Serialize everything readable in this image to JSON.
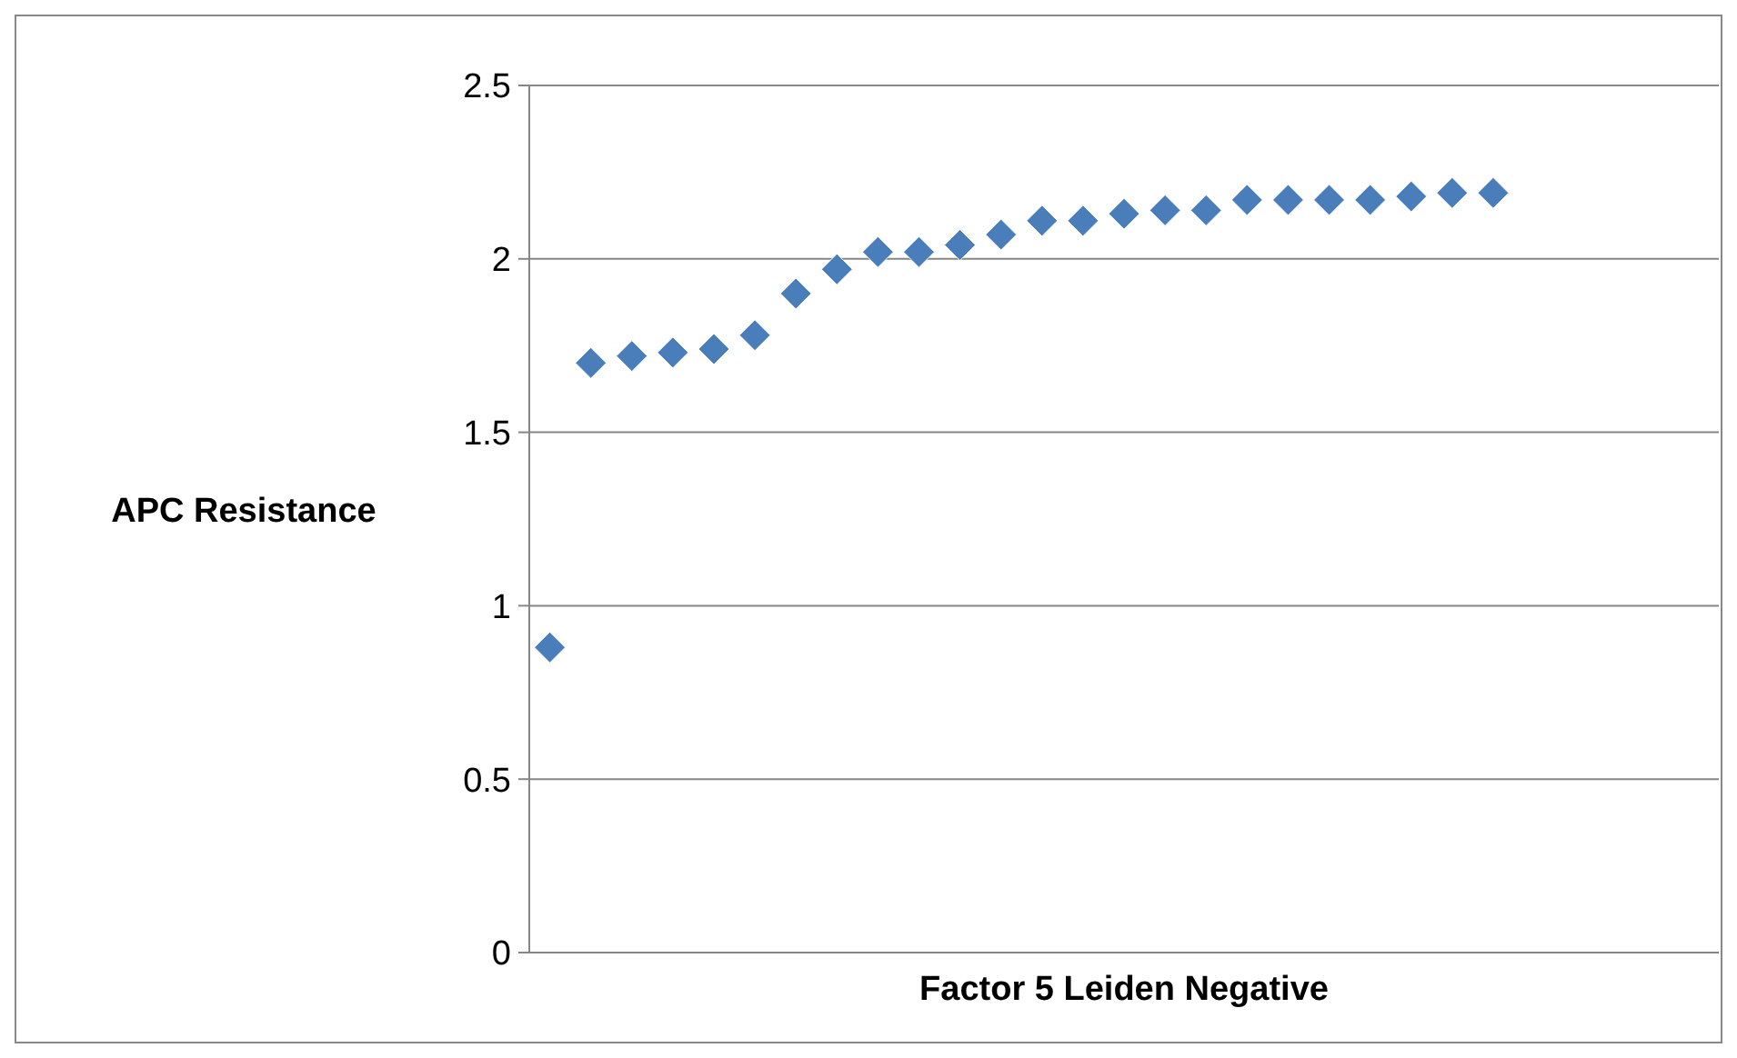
{
  "chart_data": {
    "type": "scatter",
    "xlabel": "Factor 5 Leiden Negative",
    "ylabel": "APC Resistance",
    "categories": [
      null,
      null,
      null,
      null,
      null,
      null,
      null,
      null,
      null,
      null,
      null,
      null,
      null,
      null,
      null,
      null,
      null,
      null,
      null,
      null,
      null,
      null,
      null,
      null,
      null,
      null,
      null,
      null,
      null
    ],
    "values": [
      0.88,
      1.7,
      1.72,
      1.73,
      1.74,
      1.78,
      1.9,
      1.97,
      2.02,
      2.02,
      2.04,
      2.07,
      2.11,
      2.11,
      2.13,
      2.14,
      2.14,
      2.17,
      2.17,
      2.17,
      2.17,
      2.18,
      2.19,
      2.19,
      null,
      null,
      null,
      null,
      null
    ],
    "color": "#4a7ebb",
    "marker": "diamond",
    "ylim": [
      0,
      2.5
    ],
    "yticks": [
      0,
      0.5,
      1,
      1.5,
      2,
      2.5
    ],
    "grid": "y",
    "tick_labels": "y",
    "legend": false
  }
}
